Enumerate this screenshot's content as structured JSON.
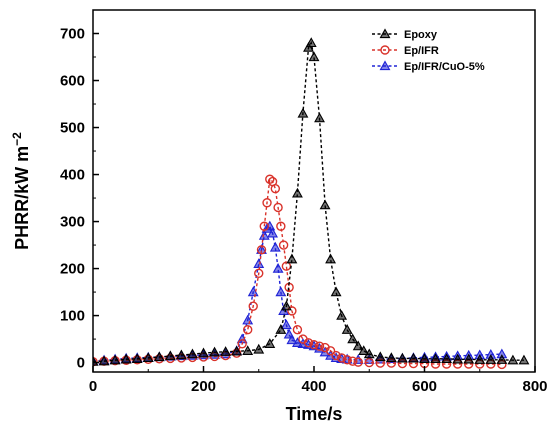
{
  "chart_data": {
    "type": "line",
    "title": "",
    "xlabel": "Time/s",
    "ylabel": "PHRR/kW m",
    "ylabel_superscript": "−2",
    "xlim": [
      0,
      800
    ],
    "ylim": [
      -20,
      750
    ],
    "xticks": [
      0,
      200,
      400,
      600,
      800
    ],
    "yticks": [
      0,
      100,
      200,
      300,
      400,
      500,
      600,
      700
    ],
    "grid": false,
    "legend_position": "top-right",
    "series": [
      {
        "name": "Epoxy",
        "color": "#000000",
        "marker": "triangle",
        "line_style": "dashed",
        "x": [
          0,
          20,
          40,
          60,
          80,
          100,
          120,
          140,
          160,
          180,
          200,
          220,
          240,
          260,
          280,
          300,
          320,
          340,
          350,
          360,
          370,
          380,
          390,
          395,
          400,
          410,
          420,
          430,
          440,
          450,
          460,
          470,
          480,
          490,
          500,
          520,
          540,
          560,
          580,
          600,
          620,
          640,
          660,
          680,
          700,
          720,
          740,
          760,
          780
        ],
        "y": [
          2,
          3,
          5,
          7,
          8,
          10,
          12,
          14,
          16,
          18,
          20,
          22,
          23,
          24,
          25,
          28,
          40,
          70,
          120,
          220,
          360,
          530,
          670,
          680,
          650,
          520,
          335,
          220,
          150,
          100,
          70,
          50,
          35,
          25,
          18,
          12,
          10,
          9,
          9,
          8,
          8,
          8,
          7,
          7,
          6,
          6,
          6,
          5,
          5
        ]
      },
      {
        "name": "Ep/IFR",
        "color": "#d9322a",
        "marker": "circle",
        "line_style": "dashed",
        "x": [
          0,
          20,
          40,
          60,
          80,
          100,
          120,
          140,
          160,
          180,
          200,
          220,
          240,
          260,
          270,
          280,
          290,
          300,
          305,
          310,
          315,
          320,
          325,
          330,
          335,
          340,
          345,
          350,
          355,
          360,
          370,
          380,
          390,
          400,
          410,
          420,
          430,
          440,
          450,
          460,
          470,
          480,
          500,
          520,
          540,
          560,
          580,
          600,
          620,
          640,
          660,
          680,
          700,
          720,
          740
        ],
        "y": [
          2,
          3,
          4,
          5,
          6,
          7,
          8,
          9,
          10,
          11,
          12,
          13,
          15,
          20,
          40,
          70,
          120,
          190,
          240,
          290,
          340,
          390,
          385,
          370,
          330,
          290,
          250,
          205,
          160,
          110,
          70,
          50,
          42,
          38,
          35,
          32,
          25,
          15,
          10,
          6,
          3,
          1,
          0,
          -1,
          -1,
          -2,
          -2,
          -2,
          -3,
          -3,
          -3,
          -3,
          -3,
          -3,
          -4
        ]
      },
      {
        "name": "Ep/IFR/CuO-5%",
        "color": "#1f23d6",
        "marker": "triangle",
        "line_style": "dashed",
        "x": [
          0,
          20,
          40,
          60,
          80,
          100,
          120,
          140,
          160,
          180,
          200,
          220,
          240,
          260,
          270,
          280,
          290,
          300,
          305,
          310,
          315,
          320,
          325,
          330,
          335,
          340,
          345,
          350,
          355,
          360,
          370,
          380,
          390,
          400,
          410,
          420,
          430,
          440,
          450,
          460,
          480,
          500,
          520,
          540,
          560,
          580,
          600,
          620,
          640,
          660,
          680,
          700,
          720,
          740
        ],
        "y": [
          3,
          5,
          7,
          9,
          10,
          11,
          12,
          13,
          14,
          15,
          16,
          17,
          18,
          25,
          50,
          90,
          150,
          210,
          240,
          270,
          285,
          290,
          275,
          245,
          200,
          150,
          110,
          80,
          60,
          48,
          42,
          40,
          38,
          35,
          30,
          22,
          15,
          10,
          8,
          7,
          6,
          6,
          7,
          8,
          9,
          10,
          11,
          12,
          13,
          14,
          15,
          16,
          17,
          18
        ]
      }
    ]
  }
}
